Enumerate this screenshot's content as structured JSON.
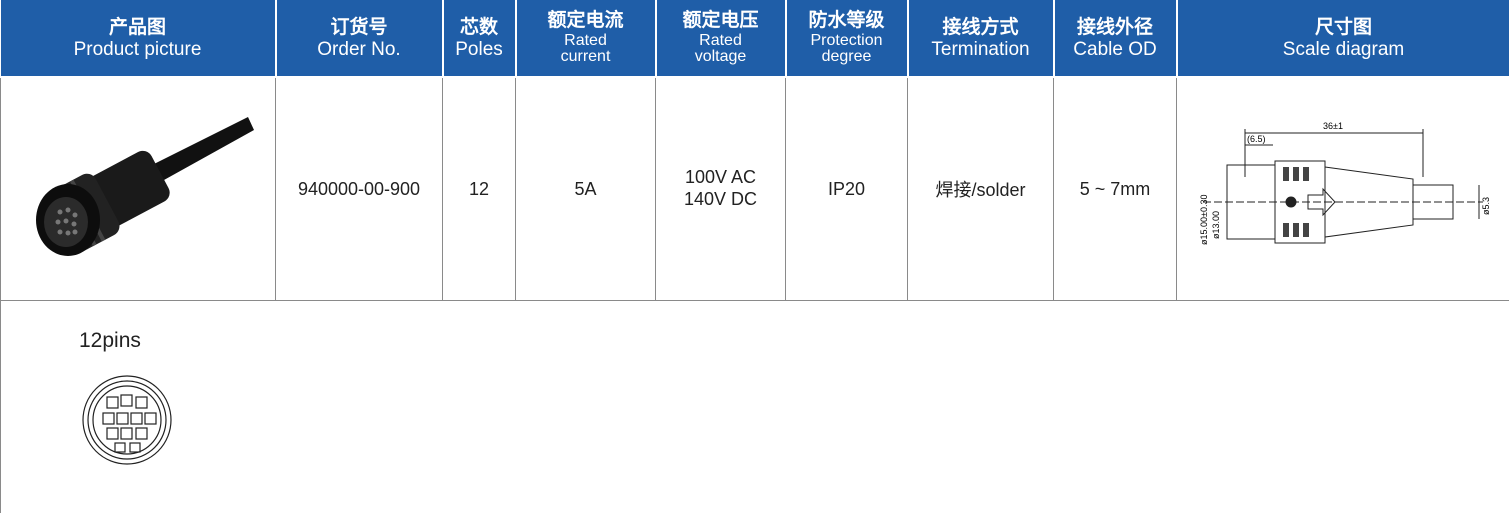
{
  "header": [
    {
      "zh": "产品图",
      "en": [
        "Product picture"
      ]
    },
    {
      "zh": "订货号",
      "en": [
        "Order No."
      ]
    },
    {
      "zh": "芯数",
      "en": [
        "Poles"
      ]
    },
    {
      "zh": "额定电流",
      "en": [
        "Rated",
        "current"
      ]
    },
    {
      "zh": "额定电压",
      "en": [
        "Rated",
        "voltage"
      ]
    },
    {
      "zh": "防水等级",
      "en": [
        "Protection",
        "degree"
      ]
    },
    {
      "zh": "接线方式",
      "en": [
        "Termination"
      ]
    },
    {
      "zh": "接线外径",
      "en": [
        "Cable OD"
      ]
    },
    {
      "zh": "尺寸图",
      "en": [
        "Scale diagram"
      ]
    }
  ],
  "row": {
    "order_no": "940000-00-900",
    "poles": "12",
    "current": "5A",
    "voltage": [
      "100V AC",
      "140V DC"
    ],
    "protection": "IP20",
    "termination": "焊接/solder",
    "cable_od": "5 ~ 7mm",
    "diagram": {
      "length": "36±1",
      "offset": "(6.5)",
      "outer_dia": "ø15.00±0.30",
      "inner_dia": "ø13.00",
      "cable_dia": "ø5.3"
    }
  },
  "pins": {
    "label": "12pins"
  }
}
